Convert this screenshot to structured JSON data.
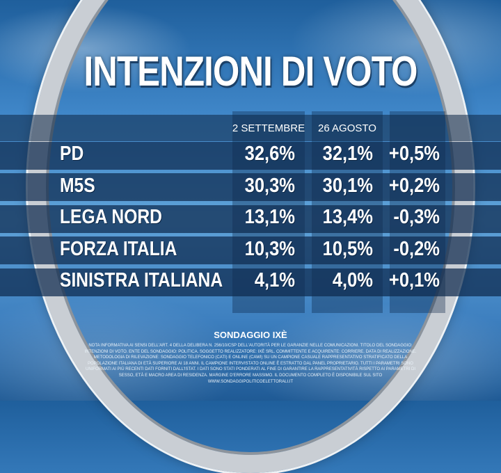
{
  "title": "INTENZIONI DI VOTO",
  "columns": [
    "2 SETTEMBRE",
    "26 AGOSTO",
    ""
  ],
  "rows": [
    {
      "party": "PD",
      "current": "32,6%",
      "previous": "32,1%",
      "change": "+0,5%"
    },
    {
      "party": "M5S",
      "current": "30,3%",
      "previous": "30,1%",
      "change": "+0,2%"
    },
    {
      "party": "LEGA NORD",
      "current": "13,1%",
      "previous": "13,4%",
      "change": "-0,3%"
    },
    {
      "party": "FORZA ITALIA",
      "current": "10,3%",
      "previous": "10,5%",
      "change": "-0,2%"
    },
    {
      "party": "SINISTRA ITALIANA",
      "current": "4,1%",
      "previous": "4,0%",
      "change": "+0,1%"
    }
  ],
  "source": "SONDAGGIO IXÈ",
  "note": "NOTA INFORMATIVA AI SENSI DELL'ART. 4 DELLA DELIBERA N. 256/10/CSP DELL'AUTORITÀ PER LE GARANZIE NELLE COMUNICAZIONI. TITOLO DEL SONDAGGIO: INTENZIONI DI VOTO. ENTE DEL SONDAGGIO: POLITICA. SOGGETTO REALIZZATORE: IXÈ SRL. COMMITTENTE E ACQUIRENTE: CORRIERE. DATA DI REALIZZAZIONE. METODOLOGIA DI RILEVAZIONE: SONDAGGIO TELEFONICO (CATI) E ONLINE (CAWI) SU UN CAMPIONE CASUALE RAPPRESENTATIVO STRATIFICATO DELLA POPOLAZIONE ITALIANA DI ETÀ SUPERIORE AI 18 ANNI. IL CAMPIONE INTERVISTATO ONLINE È ESTRATTO DAL PANEL PROPRIETARIO. TUTTI I PARAMETRI SONO UNIFORMATI AI PIÙ RECENTI DATI FORNITI DALL'ISTAT. I DATI SONO STATI PONDERATI AL FINE DI GARANTIRE LA RAPPRESENTATIVITÀ RISPETTO AI PARAMETRI DI SESSO, ETÀ E MACRO AREA DI RESIDENZA. MARGINE D'ERRORE MASSIMO. IL DOCUMENTO COMPLETO È DISPONIBILE SUL SITO WWW.SONDAGGIPOLITICOELETTORALI.IT"
}
